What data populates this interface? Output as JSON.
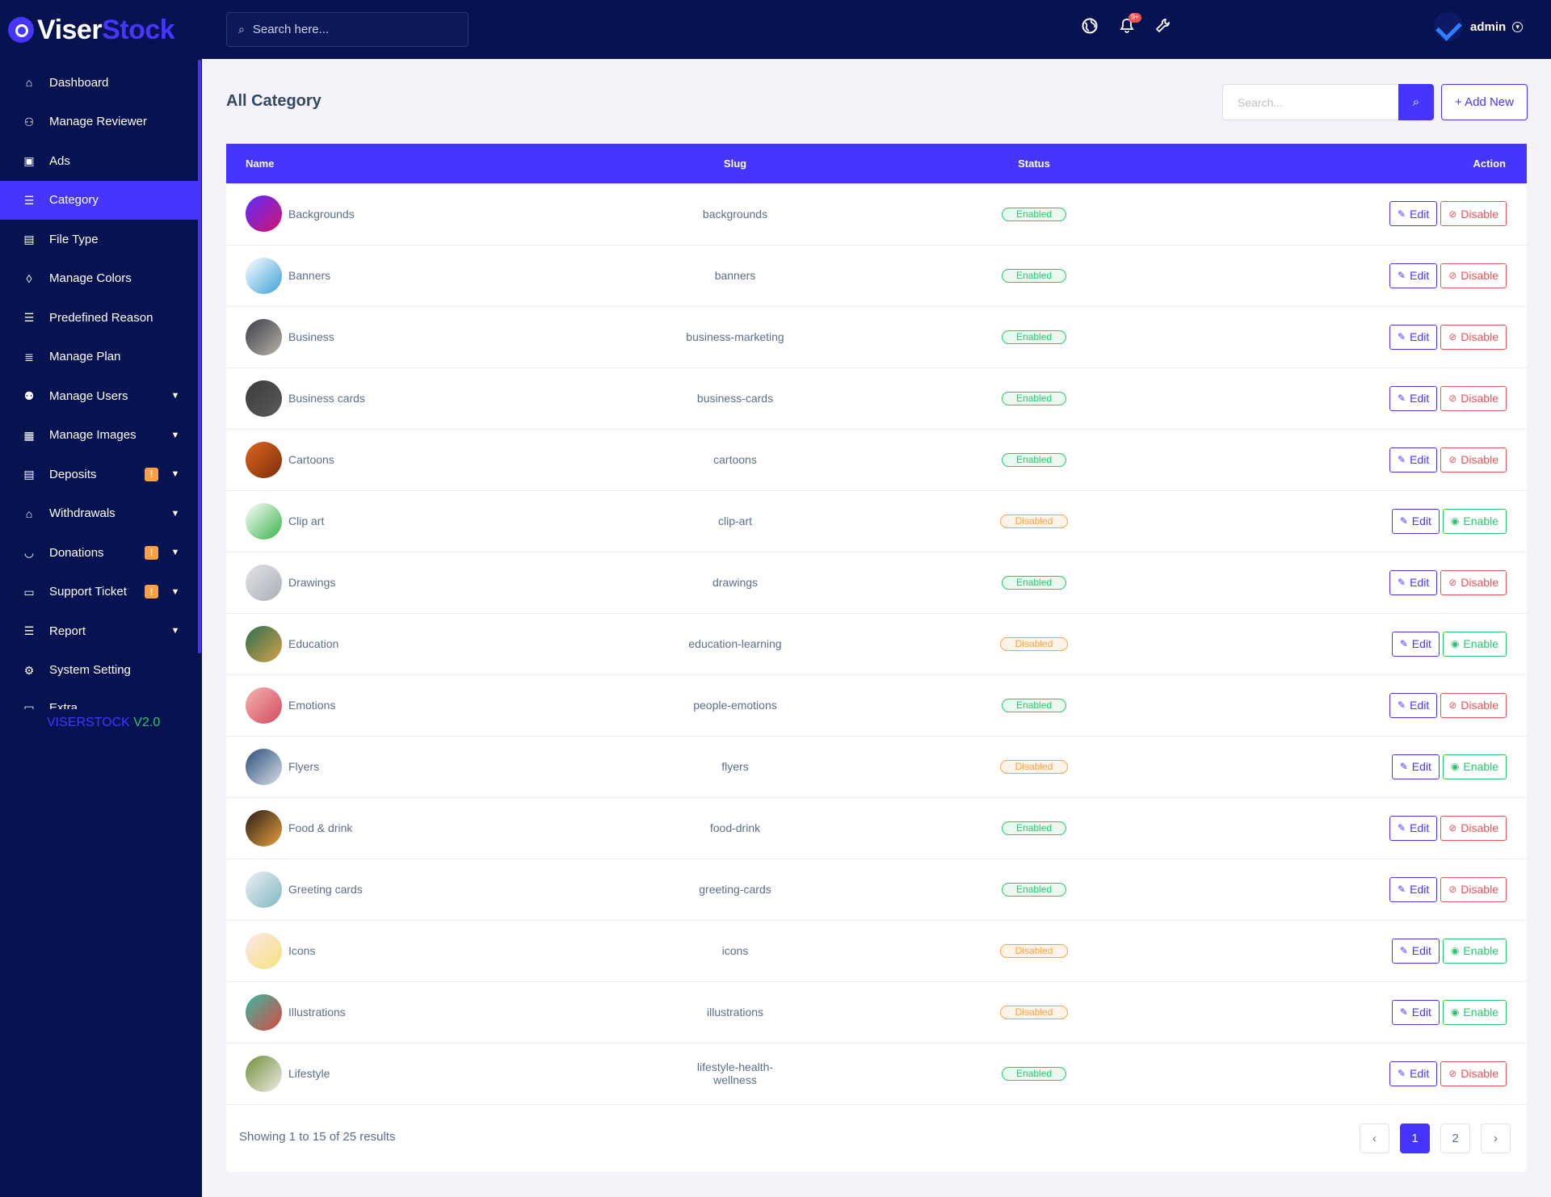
{
  "brand": {
    "part1": "Viser",
    "part2": "Stock"
  },
  "sidebar": {
    "items": [
      {
        "label": "Dashboard",
        "icon": "home-icon",
        "glyph": "⌂",
        "chevron": false,
        "badge": "",
        "active": false
      },
      {
        "label": "Manage Reviewer",
        "icon": "user-gear-icon",
        "glyph": "⚇",
        "chevron": false,
        "badge": "",
        "active": false
      },
      {
        "label": "Ads",
        "icon": "ad-icon",
        "glyph": "▣",
        "chevron": false,
        "badge": "",
        "active": false
      },
      {
        "label": "Category",
        "icon": "list-icon",
        "glyph": "☰",
        "chevron": false,
        "badge": "",
        "active": true
      },
      {
        "label": "File Type",
        "icon": "file-icon",
        "glyph": "▤",
        "chevron": false,
        "badge": "",
        "active": false
      },
      {
        "label": "Manage Colors",
        "icon": "droplet-icon",
        "glyph": "◊",
        "chevron": false,
        "badge": "",
        "active": false
      },
      {
        "label": "Predefined Reason",
        "icon": "list-icon",
        "glyph": "☰",
        "chevron": false,
        "badge": "",
        "active": false
      },
      {
        "label": "Manage Plan",
        "icon": "layers-icon",
        "glyph": "≣",
        "chevron": false,
        "badge": "",
        "active": false
      },
      {
        "label": "Manage Users",
        "icon": "users-icon",
        "glyph": "⚉",
        "chevron": true,
        "badge": "",
        "active": false
      },
      {
        "label": "Manage Images",
        "icon": "images-icon",
        "glyph": "▦",
        "chevron": true,
        "badge": "",
        "active": false
      },
      {
        "label": "Deposits",
        "icon": "file-invoice-icon",
        "glyph": "▤",
        "chevron": true,
        "badge": "!",
        "active": false
      },
      {
        "label": "Withdrawals",
        "icon": "bank-icon",
        "glyph": "⌂",
        "chevron": true,
        "badge": "",
        "active": false
      },
      {
        "label": "Donations",
        "icon": "hand-coin-icon",
        "glyph": "◡",
        "chevron": true,
        "badge": "!",
        "active": false
      },
      {
        "label": "Support Ticket",
        "icon": "ticket-icon",
        "glyph": "▭",
        "chevron": true,
        "badge": "!",
        "active": false
      },
      {
        "label": "Report",
        "icon": "list-icon",
        "glyph": "☰",
        "chevron": true,
        "badge": "",
        "active": false
      },
      {
        "label": "System Setting",
        "icon": "gear-icon",
        "glyph": "⚙",
        "chevron": false,
        "badge": "",
        "active": false
      },
      {
        "label": "Extra",
        "icon": "extra-icon",
        "glyph": "▭",
        "chevron": false,
        "badge": "",
        "active": false,
        "partial": true
      }
    ],
    "version_name": "VISERSTOCK",
    "version_num": "V2.0"
  },
  "topbar": {
    "search_placeholder": "Search here...",
    "notification_count": "9+",
    "user_name": "admin"
  },
  "page": {
    "title": "All Category",
    "search_placeholder": "Search...",
    "add_new_label": "Add New"
  },
  "table": {
    "headers": {
      "name": "Name",
      "slug": "Slug",
      "status": "Status",
      "action": "Action"
    },
    "edit_label": "Edit",
    "disable_label": "Disable",
    "enable_label": "Enable",
    "rows": [
      {
        "name": "Backgrounds",
        "slug": "backgrounds",
        "status": "Enabled",
        "thumb": [
          "#5b2cff",
          "#d6136b"
        ]
      },
      {
        "name": "Banners",
        "slug": "banners",
        "status": "Enabled",
        "thumb": [
          "#ffffff",
          "#3aa0d8"
        ]
      },
      {
        "name": "Business",
        "slug": "business-marketing",
        "status": "Enabled",
        "thumb": [
          "#3a3f4a",
          "#b9b2a6"
        ]
      },
      {
        "name": "Business cards",
        "slug": "business-cards",
        "status": "Enabled",
        "thumb": [
          "#3b3b3b",
          "#5a5a5a"
        ]
      },
      {
        "name": "Cartoons",
        "slug": "cartoons",
        "status": "Enabled",
        "thumb": [
          "#e0651d",
          "#7a2f0c"
        ]
      },
      {
        "name": "Clip art",
        "slug": "clip-art",
        "status": "Disabled",
        "thumb": [
          "#ffffff",
          "#37b34a"
        ]
      },
      {
        "name": "Drawings",
        "slug": "drawings",
        "status": "Enabled",
        "thumb": [
          "#e3e4e8",
          "#a9adb5"
        ]
      },
      {
        "name": "Education",
        "slug": "education-learning",
        "status": "Disabled",
        "thumb": [
          "#2d6e4e",
          "#d6a24a"
        ]
      },
      {
        "name": "Emotions",
        "slug": "people-emotions",
        "status": "Enabled",
        "thumb": [
          "#f4b5b2",
          "#d24a5c"
        ]
      },
      {
        "name": "Flyers",
        "slug": "flyers",
        "status": "Disabled",
        "thumb": [
          "#2b4f7a",
          "#d9dee6"
        ]
      },
      {
        "name": "Food & drink",
        "slug": "food-drink",
        "status": "Enabled",
        "thumb": [
          "#2a1d18",
          "#e6a13c"
        ]
      },
      {
        "name": "Greeting cards",
        "slug": "greeting-cards",
        "status": "Enabled",
        "thumb": [
          "#eef0f2",
          "#7fb7c4"
        ]
      },
      {
        "name": "Icons",
        "slug": "icons",
        "status": "Disabled",
        "thumb": [
          "#fde7ea",
          "#f3e27a"
        ]
      },
      {
        "name": "Illustrations",
        "slug": "illustrations",
        "status": "Disabled",
        "thumb": [
          "#3bb7a5",
          "#d9493f"
        ]
      },
      {
        "name": "Lifestyle",
        "slug": "lifestyle-health-wellness",
        "status": "Enabled",
        "thumb": [
          "#6e8f3a",
          "#f1ece6"
        ]
      }
    ]
  },
  "footer": {
    "showing": "Showing 1 to 15 of 25 results"
  },
  "pagination": {
    "prev": "‹",
    "pages": [
      "1",
      "2"
    ],
    "next": "›",
    "active": "1"
  },
  "colors": {
    "primary": "#4634ff",
    "sidebar_bg": "#071251",
    "success": "#28c76f",
    "danger": "#ea5455",
    "warning": "#ff9f43"
  }
}
